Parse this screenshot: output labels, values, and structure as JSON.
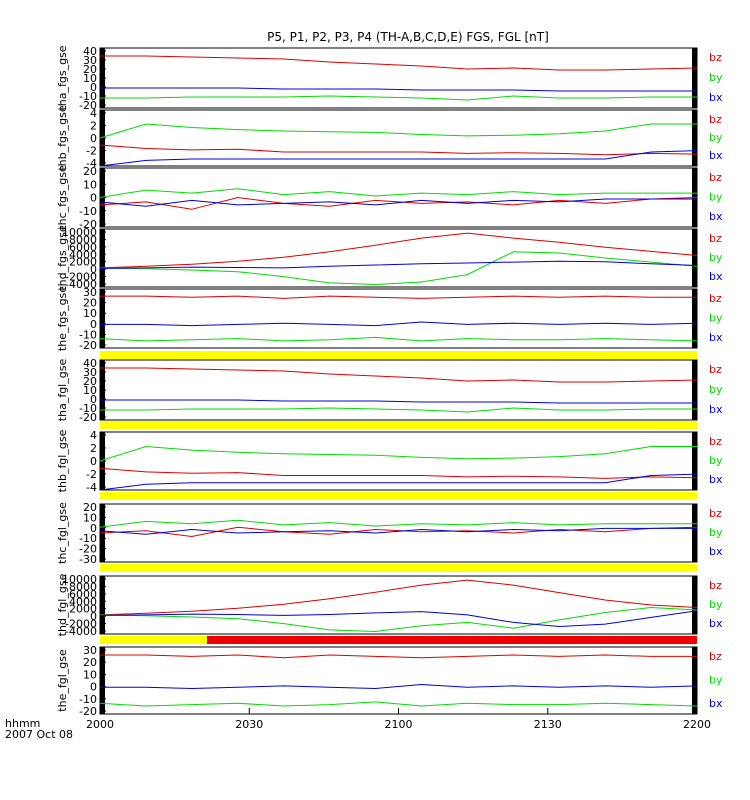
{
  "chart_data": {
    "type": "line",
    "title": "P5, P1, P2, P3, P4 (TH-A,B,C,D,E) FGS, FGL [nT]",
    "x_label_line1": "hhmm",
    "x_label_line2": "2007 Oct 08",
    "x_ticks": [
      "2000",
      "2030",
      "2100",
      "2130",
      "2200"
    ],
    "series_colors": {
      "bz": "#dd0000",
      "by": "#00dd00",
      "bx": "#0000dd"
    },
    "panels": [
      {
        "ylabel": "tha_fgs_gse",
        "ticks": [
          "40",
          "30",
          "20",
          "10",
          "0",
          "-10",
          "-20"
        ],
        "ylim": [
          -20,
          40
        ],
        "series": [
          {
            "name": "bz",
            "values": [
              32,
              32,
              31,
              30,
              29,
              26,
              24,
              22,
              19,
              20,
              18,
              18,
              19,
              20
            ]
          },
          {
            "name": "by",
            "values": [
              -10,
              -10,
              -9,
              -9,
              -9,
              -8,
              -9,
              -10,
              -12,
              -8,
              -10,
              -10,
              -9,
              -9
            ]
          },
          {
            "name": "bx",
            "values": [
              0,
              0,
              0,
              0,
              -1,
              -1,
              -1,
              -2,
              -2,
              -2,
              -3,
              -3,
              -3,
              -3
            ]
          }
        ]
      },
      {
        "ylabel": "thb_fgs_gse",
        "ticks": [
          "4",
          "2",
          "0",
          "-2",
          "-4"
        ],
        "ylim": [
          -4,
          4
        ],
        "series": [
          {
            "name": "bz",
            "values": [
              -1,
              -1.5,
              -1.7,
              -1.6,
              -2,
              -2,
              -2,
              -2,
              -2.2,
              -2.1,
              -2.2,
              -2.4,
              -2.2,
              -2.3
            ]
          },
          {
            "name": "by",
            "values": [
              0,
              2,
              1.5,
              1.2,
              1,
              0.9,
              0.8,
              0.5,
              0.3,
              0.4,
              0.6,
              1,
              2,
              2
            ]
          },
          {
            "name": "bx",
            "values": [
              -4,
              -3.2,
              -3,
              -3,
              -3,
              -3,
              -3,
              -3,
              -3,
              -3,
              -3,
              -3,
              -2,
              -1.8
            ]
          }
        ]
      },
      {
        "ylabel": "thc_fgs_gse",
        "ticks": [
          "20",
          "10",
          "0",
          "-10",
          "-20"
        ],
        "ylim": [
          -20,
          20
        ],
        "series": [
          {
            "name": "bz",
            "values": [
              -5,
              -3,
              -8,
              0,
              -4,
              -6,
              -2,
              -4,
              -3,
              -5,
              -2,
              -4,
              -1,
              0
            ]
          },
          {
            "name": "by",
            "values": [
              0,
              5,
              3,
              6,
              2,
              4,
              1,
              3,
              2,
              4,
              2,
              3,
              3,
              3
            ]
          },
          {
            "name": "bx",
            "values": [
              -3,
              -6,
              -2,
              -5,
              -4,
              -3,
              -5,
              -2,
              -4,
              -2,
              -3,
              -1,
              -1,
              -1
            ]
          }
        ]
      },
      {
        "ylabel": "thd_fgs_gse",
        "ticks": [
          "10000",
          "8000",
          "6000",
          "4000",
          "2000",
          "0",
          "-2000",
          "-4000"
        ],
        "ylim": [
          -4000,
          10000
        ],
        "series": [
          {
            "name": "bz",
            "values": [
              600,
              1000,
              1500,
              2200,
              3200,
              4500,
              6100,
              7800,
              9000,
              7800,
              6800,
              5600,
              4600,
              3600
            ]
          },
          {
            "name": "by",
            "values": [
              600,
              400,
              100,
              -300,
              -1500,
              -3000,
              -3400,
              -2800,
              -1000,
              4500,
              4200,
              3000,
              2000,
              1000
            ]
          },
          {
            "name": "bx",
            "values": [
              500,
              600,
              800,
              700,
              600,
              1000,
              1300,
              1600,
              1800,
              2000,
              2200,
              2100,
              1600,
              1200
            ]
          }
        ]
      },
      {
        "ylabel": "the_fgs_gse",
        "ticks": [
          "30",
          "20",
          "10",
          "0",
          "-10",
          "-20"
        ],
        "ylim": [
          -20,
          30
        ],
        "series": [
          {
            "name": "bz",
            "values": [
              24,
              24,
              23,
              24,
              22,
              24,
              23,
              22,
              23,
              24,
              23,
              24,
              23,
              23
            ]
          },
          {
            "name": "by",
            "values": [
              -12,
              -14,
              -13,
              -12,
              -14,
              -13,
              -11,
              -14,
              -12,
              -13,
              -13,
              -12,
              -13,
              -14
            ]
          },
          {
            "name": "bx",
            "values": [
              0,
              0,
              -1,
              0,
              1,
              0,
              -1,
              2,
              0,
              1,
              0,
              1,
              0,
              1
            ]
          }
        ]
      },
      {
        "ylabel": "tha_fgl_gse",
        "ticks": [
          "40",
          "30",
          "20",
          "10",
          "0",
          "-10",
          "-20"
        ],
        "ylim": [
          -20,
          40
        ],
        "series": [
          {
            "name": "bz",
            "values": [
              32,
              32,
              31,
              30,
              29,
              26,
              24,
              22,
              19,
              20,
              18,
              18,
              19,
              20
            ]
          },
          {
            "name": "by",
            "values": [
              -10,
              -10,
              -9,
              -9,
              -9,
              -8,
              -9,
              -10,
              -12,
              -8,
              -10,
              -10,
              -9,
              -9
            ]
          },
          {
            "name": "bx",
            "values": [
              0,
              0,
              0,
              0,
              -1,
              -1,
              -1,
              -2,
              -2,
              -2,
              -3,
              -3,
              -3,
              -3
            ]
          }
        ]
      },
      {
        "ylabel": "thb_fgl_gse",
        "ticks": [
          "4",
          "2",
          "0",
          "-2",
          "-4"
        ],
        "ylim": [
          -4,
          4
        ],
        "series": [
          {
            "name": "bz",
            "values": [
              -1,
              -1.5,
              -1.7,
              -1.6,
              -2,
              -2,
              -2,
              -2,
              -2.2,
              -2.1,
              -2.2,
              -2.4,
              -2.2,
              -2.3
            ]
          },
          {
            "name": "by",
            "values": [
              0,
              2,
              1.5,
              1.2,
              1,
              0.9,
              0.8,
              0.5,
              0.3,
              0.4,
              0.6,
              1,
              2,
              2
            ]
          },
          {
            "name": "bx",
            "values": [
              -4,
              -3.2,
              -3,
              -3,
              -3,
              -3,
              -3,
              -3,
              -3,
              -3,
              -3,
              -3,
              -2,
              -1.8
            ]
          }
        ]
      },
      {
        "ylabel": "thc_fgl_gse",
        "ticks": [
          "20",
          "10",
          "0",
          "-10",
          "-20",
          "-30"
        ],
        "ylim": [
          -30,
          20
        ],
        "series": [
          {
            "name": "bz",
            "values": [
              -5,
              -3,
              -8,
              0,
              -4,
              -6,
              -2,
              -4,
              -3,
              -5,
              -2,
              -4,
              -1,
              0
            ]
          },
          {
            "name": "by",
            "values": [
              0,
              5,
              3,
              6,
              2,
              4,
              1,
              3,
              2,
              4,
              2,
              3,
              3,
              3
            ]
          },
          {
            "name": "bx",
            "values": [
              -3,
              -6,
              -2,
              -5,
              -4,
              -3,
              -5,
              -2,
              -4,
              -2,
              -3,
              -1,
              -1,
              -1
            ]
          }
        ]
      },
      {
        "ylabel": "thd_fgl_gse",
        "ticks": [
          "10000",
          "8000",
          "6000",
          "4000",
          "2000",
          "0",
          "-2000",
          "-4000"
        ],
        "ylim": [
          -4000,
          10000
        ],
        "series": [
          {
            "name": "bz",
            "values": [
              600,
              1000,
              1500,
              2200,
              3200,
              4500,
              6100,
              7800,
              9000,
              7800,
              6000,
              4200,
              3000,
              2400
            ]
          },
          {
            "name": "by",
            "values": [
              600,
              400,
              100,
              -300,
              -1500,
              -3000,
              -3400,
              -2000,
              -1200,
              -2600,
              -600,
              1200,
              2400,
              1800
            ]
          },
          {
            "name": "bx",
            "values": [
              500,
              600,
              800,
              700,
              500,
              700,
              1100,
              1400,
              600,
              -1200,
              -2200,
              -1600,
              0,
              1600
            ]
          }
        ]
      },
      {
        "ylabel": "the_fgl_gse",
        "ticks": [
          "30",
          "20",
          "10",
          "0",
          "-10",
          "-20"
        ],
        "ylim": [
          -20,
          30
        ],
        "series": [
          {
            "name": "bz",
            "values": [
              24,
              24,
              23,
              24,
              22,
              24,
              23,
              22,
              23,
              24,
              23,
              24,
              23,
              23
            ]
          },
          {
            "name": "by",
            "values": [
              -12,
              -14,
              -13,
              -12,
              -14,
              -13,
              -11,
              -14,
              -12,
              -13,
              -13,
              -12,
              -13,
              -14
            ]
          },
          {
            "name": "bx",
            "values": [
              0,
              0,
              -1,
              0,
              1,
              0,
              -1,
              2,
              0,
              1,
              0,
              1,
              0,
              1
            ]
          }
        ]
      }
    ]
  }
}
